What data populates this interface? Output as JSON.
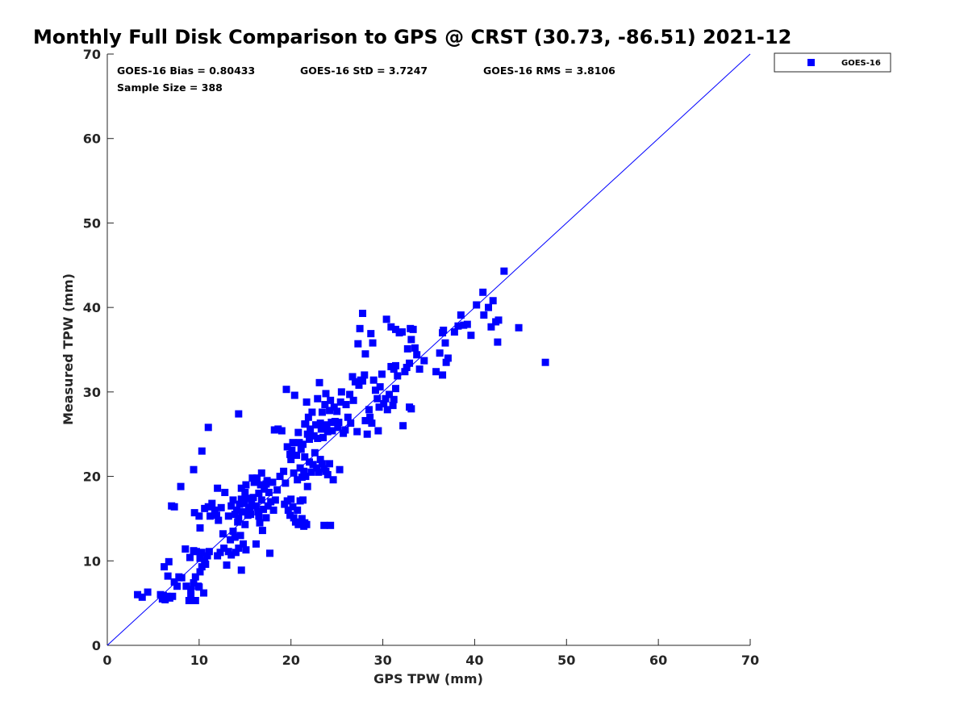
{
  "chart_data": {
    "type": "scatter",
    "title": "Monthly Full Disk Comparison to GPS @ CRST (30.73, -86.51) 2021-12",
    "xlabel": "GPS TPW (mm)",
    "ylabel": "Measured TPW (mm)",
    "xlim": [
      0,
      70
    ],
    "ylim": [
      0,
      70
    ],
    "xticks": [
      0,
      10,
      20,
      30,
      40,
      50,
      60,
      70
    ],
    "yticks": [
      0,
      10,
      20,
      30,
      40,
      50,
      60,
      70
    ],
    "grid": false,
    "legend_position": "outside-top-right",
    "stats": {
      "bias": "GOES-16 Bias = 0.80433",
      "std": "GOES-16 StD = 3.7247",
      "rms": "GOES-16 RMS = 3.8106",
      "sample": "Sample Size = 388"
    },
    "reference_line": {
      "type": "one-to-one",
      "from": [
        0,
        0
      ],
      "to": [
        70,
        70
      ],
      "color": "#0000ff"
    },
    "series": [
      {
        "name": "GOES-16",
        "color": "#0000ff",
        "marker": "square",
        "points": [
          [
            3.3,
            6.0
          ],
          [
            3.8,
            5.7
          ],
          [
            4.4,
            6.3
          ],
          [
            5.8,
            6.0
          ],
          [
            6.0,
            5.5
          ],
          [
            6.1,
            5.9
          ],
          [
            6.3,
            5.4
          ],
          [
            6.5,
            5.8
          ],
          [
            6.8,
            5.6
          ],
          [
            7.1,
            5.8
          ],
          [
            6.2,
            9.3
          ],
          [
            6.7,
            9.9
          ],
          [
            6.6,
            8.2
          ],
          [
            7.3,
            7.5
          ],
          [
            7.6,
            7.0
          ],
          [
            7.8,
            8.1
          ],
          [
            8.1,
            8.0
          ],
          [
            8.6,
            7.0
          ],
          [
            8.9,
            5.3
          ],
          [
            9.1,
            6.6
          ],
          [
            9.3,
            5.3
          ],
          [
            9.6,
            5.3
          ],
          [
            9.4,
            7.4
          ],
          [
            9.6,
            8.1
          ],
          [
            9.9,
            7.0
          ],
          [
            10.1,
            8.7
          ],
          [
            10.3,
            9.3
          ],
          [
            10.5,
            6.2
          ],
          [
            8.5,
            11.4
          ],
          [
            9.0,
            10.4
          ],
          [
            9.4,
            11.2
          ],
          [
            9.7,
            11.1
          ],
          [
            10.1,
            10.3
          ],
          [
            10.3,
            11.0
          ],
          [
            10.6,
            10.0
          ],
          [
            10.9,
            10.6
          ],
          [
            11.1,
            11.1
          ],
          [
            10.7,
            9.6
          ],
          [
            9.1,
            5.8
          ],
          [
            10.0,
            6.9
          ],
          [
            7.0,
            16.5
          ],
          [
            7.3,
            16.4
          ],
          [
            8.0,
            18.8
          ],
          [
            9.4,
            20.8
          ],
          [
            9.5,
            15.7
          ],
          [
            10.0,
            15.3
          ],
          [
            10.1,
            13.9
          ],
          [
            10.3,
            23.0
          ],
          [
            11.0,
            25.8
          ],
          [
            10.6,
            16.2
          ],
          [
            11.0,
            16.4
          ],
          [
            11.2,
            15.3
          ],
          [
            11.4,
            16.8
          ],
          [
            11.7,
            16.0
          ],
          [
            11.9,
            15.4
          ],
          [
            12.1,
            14.8
          ],
          [
            12.0,
            18.6
          ],
          [
            12.4,
            16.3
          ],
          [
            12.8,
            18.1
          ],
          [
            12.6,
            13.2
          ],
          [
            12.3,
            11.0
          ],
          [
            12.0,
            10.6
          ],
          [
            12.7,
            11.5
          ],
          [
            13.0,
            9.5
          ],
          [
            13.2,
            11.1
          ],
          [
            13.5,
            10.7
          ],
          [
            13.4,
            12.5
          ],
          [
            13.7,
            13.5
          ],
          [
            13.9,
            12.8
          ],
          [
            14.0,
            11.0
          ],
          [
            14.3,
            11.5
          ],
          [
            14.2,
            14.6
          ],
          [
            14.5,
            13.0
          ],
          [
            14.8,
            12.0
          ],
          [
            14.6,
            8.9
          ],
          [
            15.1,
            11.3
          ],
          [
            15.0,
            14.3
          ],
          [
            15.3,
            15.4
          ],
          [
            15.5,
            16.3
          ],
          [
            14.3,
            27.4
          ],
          [
            13.2,
            15.3
          ],
          [
            13.5,
            16.5
          ],
          [
            13.7,
            17.2
          ],
          [
            13.9,
            15.5
          ],
          [
            14.1,
            16.0
          ],
          [
            14.3,
            15.1
          ],
          [
            14.4,
            16.7
          ],
          [
            14.6,
            17.3
          ],
          [
            14.7,
            15.8
          ],
          [
            14.9,
            16.8
          ],
          [
            15.0,
            18.1
          ],
          [
            15.2,
            17.4
          ],
          [
            15.4,
            16.0
          ],
          [
            15.6,
            15.5
          ],
          [
            15.7,
            16.9
          ],
          [
            15.9,
            17.5
          ],
          [
            14.6,
            18.6
          ],
          [
            15.1,
            19.0
          ],
          [
            15.8,
            19.8
          ],
          [
            16.0,
            19.3
          ],
          [
            16.2,
            16.5
          ],
          [
            16.4,
            15.8
          ],
          [
            16.5,
            18.0
          ],
          [
            16.7,
            19.0
          ],
          [
            16.8,
            17.2
          ],
          [
            17.0,
            16.1
          ],
          [
            17.1,
            18.5
          ],
          [
            17.3,
            19.1
          ],
          [
            17.5,
            16.5
          ],
          [
            17.6,
            18.1
          ],
          [
            17.8,
            17.0
          ],
          [
            18.0,
            19.3
          ],
          [
            18.1,
            16.0
          ],
          [
            18.3,
            17.2
          ],
          [
            18.5,
            18.4
          ],
          [
            16.6,
            14.5
          ],
          [
            16.9,
            13.6
          ],
          [
            17.3,
            15.1
          ],
          [
            17.7,
            10.9
          ],
          [
            16.2,
            12.0
          ],
          [
            16.5,
            15.3
          ],
          [
            16.3,
            19.8
          ],
          [
            16.8,
            20.4
          ],
          [
            17.4,
            19.5
          ],
          [
            18.2,
            25.5
          ],
          [
            18.6,
            25.6
          ],
          [
            19.0,
            25.4
          ],
          [
            18.8,
            20.0
          ],
          [
            19.2,
            20.6
          ],
          [
            19.4,
            19.2
          ],
          [
            19.3,
            16.7
          ],
          [
            19.6,
            17.1
          ],
          [
            19.7,
            16.0
          ],
          [
            19.9,
            15.4
          ],
          [
            20.0,
            17.3
          ],
          [
            20.2,
            16.4
          ],
          [
            20.3,
            15.1
          ],
          [
            20.5,
            14.6
          ],
          [
            20.7,
            16.0
          ],
          [
            20.8,
            14.3
          ],
          [
            21.0,
            17.1
          ],
          [
            21.2,
            15.0
          ],
          [
            21.4,
            14.1
          ],
          [
            21.5,
            14.5
          ],
          [
            21.7,
            14.3
          ],
          [
            19.5,
            30.3
          ],
          [
            19.6,
            23.5
          ],
          [
            19.9,
            22.6
          ],
          [
            20.1,
            23.1
          ],
          [
            20.2,
            24.0
          ],
          [
            20.4,
            29.6
          ],
          [
            20.6,
            22.5
          ],
          [
            20.8,
            25.2
          ],
          [
            20.9,
            24.0
          ],
          [
            21.1,
            23.2
          ],
          [
            21.3,
            23.8
          ],
          [
            21.5,
            22.3
          ],
          [
            21.6,
            26.2
          ],
          [
            21.8,
            25.0
          ],
          [
            22.0,
            24.4
          ],
          [
            20.0,
            22.0
          ],
          [
            20.3,
            20.4
          ],
          [
            20.7,
            19.6
          ],
          [
            21.0,
            21.0
          ],
          [
            21.2,
            19.9
          ],
          [
            21.4,
            20.6
          ],
          [
            21.6,
            20.0
          ],
          [
            21.8,
            18.8
          ],
          [
            22.0,
            21.7
          ],
          [
            22.2,
            20.5
          ],
          [
            22.4,
            21.4
          ],
          [
            22.6,
            22.8
          ],
          [
            22.8,
            21.0
          ],
          [
            23.0,
            20.5
          ],
          [
            23.2,
            22.0
          ],
          [
            23.4,
            21.5
          ],
          [
            23.6,
            20.9
          ],
          [
            23.8,
            20.6
          ],
          [
            24.0,
            20.2
          ],
          [
            24.2,
            21.5
          ],
          [
            24.6,
            19.6
          ],
          [
            25.3,
            20.8
          ],
          [
            23.6,
            14.2
          ],
          [
            24.3,
            14.2
          ],
          [
            21.3,
            17.2
          ],
          [
            21.5,
            26.2
          ],
          [
            21.7,
            28.8
          ],
          [
            21.9,
            27.0
          ],
          [
            22.1,
            25.6
          ],
          [
            22.3,
            27.6
          ],
          [
            22.5,
            24.8
          ],
          [
            22.7,
            26.1
          ],
          [
            22.9,
            24.5
          ],
          [
            22.9,
            29.2
          ],
          [
            23.1,
            31.1
          ],
          [
            23.2,
            26.3
          ],
          [
            23.3,
            25.6
          ],
          [
            23.4,
            27.6
          ],
          [
            23.5,
            24.6
          ],
          [
            23.7,
            28.5
          ],
          [
            23.8,
            29.8
          ],
          [
            23.9,
            26.1
          ],
          [
            24.0,
            25.3
          ],
          [
            24.2,
            27.8
          ],
          [
            24.3,
            29.0
          ],
          [
            24.4,
            26.4
          ],
          [
            24.5,
            25.4
          ],
          [
            24.7,
            28.2
          ],
          [
            24.8,
            26.5
          ],
          [
            25.0,
            27.7
          ],
          [
            25.1,
            25.8
          ],
          [
            25.2,
            26.4
          ],
          [
            25.4,
            28.8
          ],
          [
            25.5,
            30.0
          ],
          [
            25.7,
            25.1
          ],
          [
            25.9,
            25.5
          ],
          [
            26.0,
            28.5
          ],
          [
            26.2,
            27.0
          ],
          [
            26.4,
            29.7
          ],
          [
            26.5,
            26.3
          ],
          [
            26.7,
            31.8
          ],
          [
            26.8,
            29.0
          ],
          [
            27.0,
            31.2
          ],
          [
            27.2,
            25.3
          ],
          [
            27.4,
            30.8
          ],
          [
            27.6,
            31.4
          ],
          [
            27.8,
            31.3
          ],
          [
            28.0,
            32.0
          ],
          [
            28.1,
            26.6
          ],
          [
            28.3,
            25.0
          ],
          [
            28.5,
            27.9
          ],
          [
            28.6,
            27.0
          ],
          [
            28.8,
            26.3
          ],
          [
            29.0,
            31.4
          ],
          [
            29.2,
            30.2
          ],
          [
            29.4,
            29.2
          ],
          [
            29.5,
            25.4
          ],
          [
            29.7,
            30.6
          ],
          [
            29.9,
            32.1
          ],
          [
            29.6,
            28.2
          ],
          [
            30.1,
            28.6
          ],
          [
            30.3,
            29.2
          ],
          [
            30.5,
            27.9
          ],
          [
            30.7,
            29.7
          ],
          [
            30.9,
            33.0
          ],
          [
            31.1,
            28.4
          ],
          [
            31.2,
            32.7
          ],
          [
            31.4,
            33.1
          ],
          [
            31.6,
            31.9
          ],
          [
            31.4,
            30.4
          ],
          [
            31.2,
            29.1
          ],
          [
            31.8,
            37.0
          ],
          [
            32.1,
            37.1
          ],
          [
            32.4,
            32.4
          ],
          [
            32.6,
            32.9
          ],
          [
            32.2,
            26.0
          ],
          [
            32.9,
            28.2
          ],
          [
            33.1,
            28.0
          ],
          [
            33.0,
            37.5
          ],
          [
            33.1,
            36.2
          ],
          [
            33.3,
            37.4
          ],
          [
            33.5,
            35.2
          ],
          [
            33.7,
            34.4
          ],
          [
            34.0,
            32.7
          ],
          [
            34.5,
            33.7
          ],
          [
            32.9,
            33.4
          ],
          [
            32.7,
            35.1
          ],
          [
            27.5,
            37.5
          ],
          [
            27.8,
            39.3
          ],
          [
            28.1,
            34.5
          ],
          [
            28.7,
            36.9
          ],
          [
            28.9,
            35.8
          ],
          [
            27.3,
            35.7
          ],
          [
            30.4,
            38.6
          ],
          [
            30.9,
            37.7
          ],
          [
            31.4,
            37.4
          ],
          [
            35.8,
            32.4
          ],
          [
            36.2,
            34.6
          ],
          [
            36.5,
            37.0
          ],
          [
            36.6,
            37.3
          ],
          [
            36.8,
            35.8
          ],
          [
            36.5,
            32.0
          ],
          [
            36.9,
            33.5
          ],
          [
            37.1,
            34.0
          ],
          [
            37.8,
            37.1
          ],
          [
            38.2,
            37.8
          ],
          [
            38.5,
            39.1
          ],
          [
            38.8,
            37.9
          ],
          [
            39.2,
            38.0
          ],
          [
            39.6,
            36.7
          ],
          [
            40.2,
            40.3
          ],
          [
            40.9,
            41.8
          ],
          [
            41.5,
            40.0
          ],
          [
            42.0,
            40.8
          ],
          [
            42.3,
            38.3
          ],
          [
            42.6,
            38.5
          ],
          [
            43.2,
            44.3
          ],
          [
            44.8,
            37.6
          ],
          [
            47.7,
            33.5
          ],
          [
            41.8,
            37.7
          ],
          [
            42.5,
            35.9
          ],
          [
            41.0,
            39.1
          ]
        ]
      }
    ]
  }
}
